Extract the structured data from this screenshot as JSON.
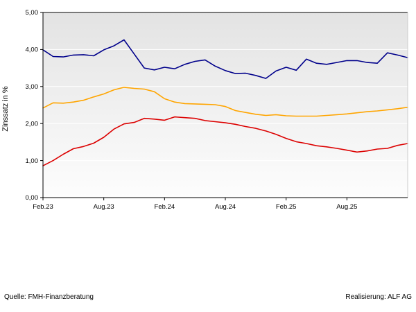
{
  "chart_data": {
    "type": "line",
    "title": "",
    "xlabel": "",
    "ylabel": "Zinssatz in %",
    "ylim": [
      0,
      5
    ],
    "grid": "horizontal",
    "legend": "none",
    "plot_background": {
      "top": "#e3e3e3",
      "bottom": "#fdfdfd"
    },
    "gridline_color": "#ffffff",
    "axis_color": "#000000",
    "y_tick_labels": [
      "0,00",
      "1,00",
      "2,00",
      "3,00",
      "4,00",
      "5,00"
    ],
    "x_tick_labels": [
      "Feb.23",
      "Aug.23",
      "Feb.24",
      "Aug.24",
      "Feb.25",
      "Aug.25"
    ],
    "x_tick_indices": [
      0,
      6,
      12,
      18,
      24,
      30
    ],
    "x_unit": "month",
    "series": [
      {
        "name": "line-dark-blue",
        "color": "#00008B",
        "values": [
          3.99,
          3.81,
          3.8,
          3.85,
          3.86,
          3.83,
          3.99,
          4.1,
          4.26,
          3.88,
          3.5,
          3.45,
          3.52,
          3.48,
          3.6,
          3.68,
          3.72,
          3.55,
          3.43,
          3.35,
          3.36,
          3.3,
          3.22,
          3.42,
          3.52,
          3.44,
          3.74,
          3.63,
          3.6,
          3.65,
          3.7,
          3.7,
          3.65,
          3.63,
          3.91,
          3.85,
          3.78
        ]
      },
      {
        "name": "line-orange",
        "color": "#FFA500",
        "values": [
          2.42,
          2.56,
          2.55,
          2.58,
          2.63,
          2.72,
          2.8,
          2.91,
          2.98,
          2.95,
          2.93,
          2.86,
          2.67,
          2.58,
          2.54,
          2.53,
          2.52,
          2.51,
          2.46,
          2.35,
          2.3,
          2.25,
          2.22,
          2.24,
          2.21,
          2.2,
          2.2,
          2.2,
          2.22,
          2.24,
          2.26,
          2.29,
          2.32,
          2.34,
          2.37,
          2.4,
          2.44
        ]
      },
      {
        "name": "line-red",
        "color": "#DC0000",
        "values": [
          0.86,
          1.0,
          1.17,
          1.32,
          1.38,
          1.47,
          1.63,
          1.85,
          1.99,
          2.03,
          2.14,
          2.12,
          2.09,
          2.18,
          2.16,
          2.14,
          2.08,
          2.05,
          2.02,
          1.98,
          1.92,
          1.87,
          1.8,
          1.71,
          1.6,
          1.51,
          1.46,
          1.4,
          1.37,
          1.33,
          1.28,
          1.23,
          1.26,
          1.31,
          1.33,
          1.41,
          1.46
        ]
      }
    ]
  },
  "footer": {
    "source": "Quelle: FMH-Finanzberatung",
    "realization": "Realisierung: ALF AG"
  }
}
